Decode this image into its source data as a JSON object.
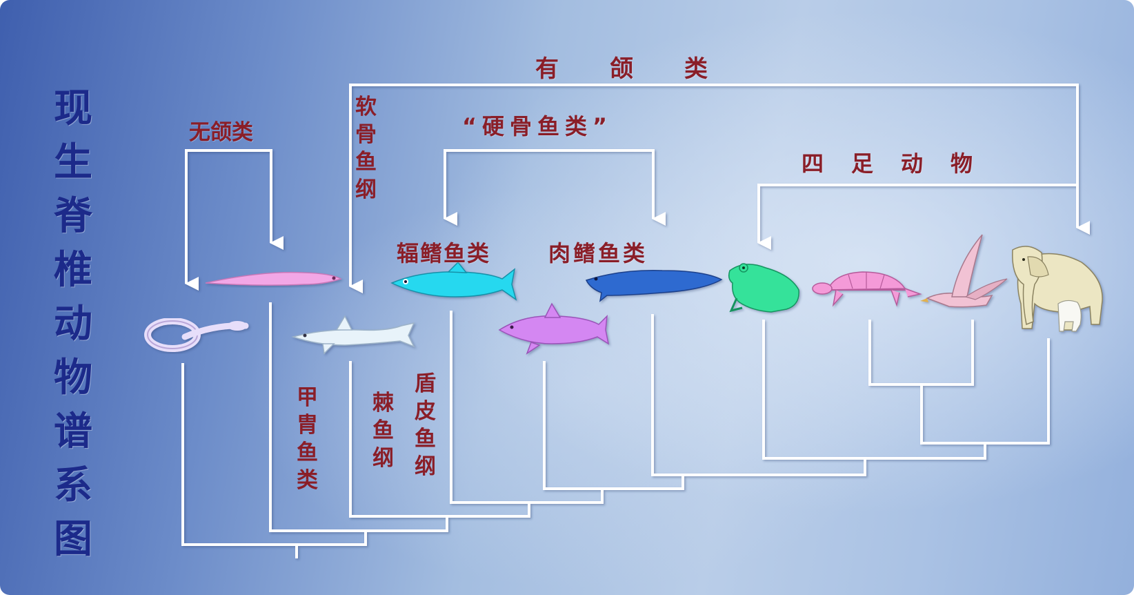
{
  "title": "现生脊椎动物谱系图",
  "labels": {
    "jawed": "有　　颌　　类",
    "jawless": "无颌类",
    "chondrichthyes": "软骨鱼纲",
    "osteichthyes": "“硬骨鱼类”",
    "tetrapods": "四　足　动　物",
    "actinopterygii": "辐鳍鱼类",
    "sarcopterygii": "肉鳍鱼类",
    "ostracoderms": "甲胄鱼类",
    "acanthodii": "棘鱼纲",
    "placodermi": "盾皮鱼纲"
  },
  "organisms": [
    {
      "id": "hagfish",
      "color": "#e7defa"
    },
    {
      "id": "lamprey",
      "color": "#f2a7e6"
    },
    {
      "id": "shark",
      "color": "#e8f3fa"
    },
    {
      "id": "ray-finned-fish",
      "color": "#27d8ef"
    },
    {
      "id": "coelacanth",
      "color": "#d487f2"
    },
    {
      "id": "lungfish",
      "color": "#2e6ad0"
    },
    {
      "id": "frog",
      "color": "#35e29a"
    },
    {
      "id": "turtle",
      "color": "#f49ad8"
    },
    {
      "id": "bird",
      "color": "#f1c2d4"
    },
    {
      "id": "elephant",
      "color": "#ece6c3"
    }
  ],
  "colors": {
    "title": "#1c2a8a",
    "label": "#8a1e28",
    "lines": "#ffffff"
  }
}
